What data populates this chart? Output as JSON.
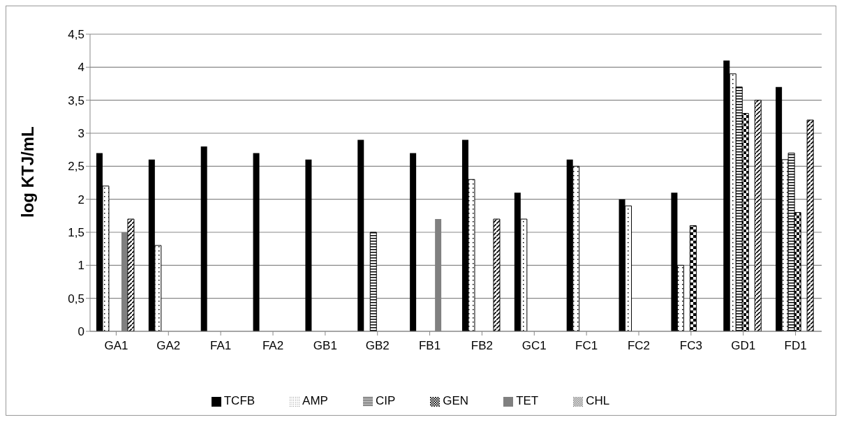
{
  "chart_data": {
    "type": "bar",
    "ylabel": "log KTJ/mL",
    "categories": [
      "GA1",
      "GA2",
      "FA1",
      "FA2",
      "GB1",
      "GB2",
      "FB1",
      "FB2",
      "GC1",
      "FC1",
      "FC2",
      "FC3",
      "GD1",
      "FD1"
    ],
    "series": [
      {
        "name": "TCFB",
        "color": "#000000",
        "values": [
          2.7,
          2.6,
          2.8,
          2.7,
          2.6,
          2.9,
          2.7,
          2.9,
          2.1,
          2.6,
          2.0,
          2.1,
          4.1,
          3.7
        ]
      },
      {
        "name": "AMP",
        "color": "#000000",
        "values": [
          2.2,
          1.3,
          null,
          null,
          null,
          null,
          null,
          2.3,
          1.7,
          2.5,
          1.9,
          1.0,
          3.9,
          2.6
        ]
      },
      {
        "name": "CIP",
        "color": "#000000",
        "values": [
          null,
          null,
          null,
          null,
          null,
          1.5,
          null,
          null,
          null,
          null,
          null,
          null,
          3.7,
          2.7
        ]
      },
      {
        "name": "GEN",
        "color": "#000000",
        "values": [
          null,
          null,
          null,
          null,
          null,
          null,
          null,
          null,
          null,
          null,
          null,
          1.6,
          3.3,
          1.8
        ]
      },
      {
        "name": "TET",
        "color": "#808080",
        "values": [
          1.5,
          null,
          null,
          null,
          null,
          null,
          1.7,
          null,
          null,
          null,
          null,
          null,
          null,
          null
        ]
      },
      {
        "name": "CHL",
        "color": "#000000",
        "values": [
          1.7,
          null,
          null,
          null,
          null,
          null,
          null,
          1.7,
          null,
          null,
          null,
          null,
          3.5,
          3.2
        ]
      }
    ],
    "ylim": [
      0,
      4.5
    ],
    "yticks": [
      0,
      {
        "value": 0.5,
        "label": "0,5"
      },
      1,
      {
        "value": 1.5,
        "label": "1,5"
      },
      2,
      {
        "value": 2.5,
        "label": "2,5"
      },
      3,
      {
        "value": 3.5,
        "label": "3,5"
      },
      4,
      {
        "value": 4.5,
        "label": "4,5"
      }
    ],
    "grid": "y",
    "legend": "bottom"
  }
}
